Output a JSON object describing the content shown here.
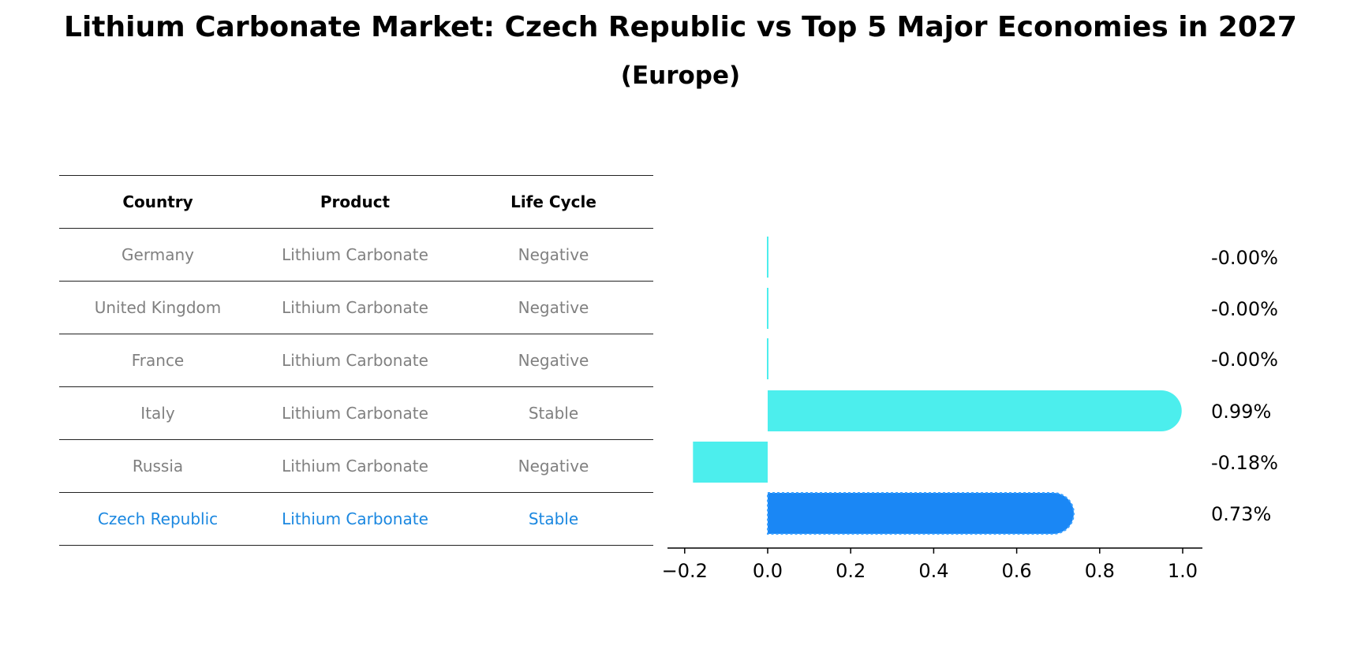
{
  "title": "Lithium Carbonate Market: Czech Republic vs Top 5 Major Economies in 2027",
  "subtitle": "(Europe)",
  "table": {
    "headers": [
      "Country",
      "Product",
      "Life Cycle"
    ],
    "rows": [
      {
        "country": "Germany",
        "product": "Lithium Carbonate",
        "life_cycle": "Negative"
      },
      {
        "country": "United Kingdom",
        "product": "Lithium Carbonate",
        "life_cycle": "Negative"
      },
      {
        "country": "France",
        "product": "Lithium Carbonate",
        "life_cycle": "Negative"
      },
      {
        "country": "Italy",
        "product": "Lithium Carbonate",
        "life_cycle": "Stable"
      },
      {
        "country": "Russia",
        "product": "Lithium Carbonate",
        "life_cycle": "Negative"
      },
      {
        "country": "Czech Republic",
        "product": "Lithium Carbonate",
        "life_cycle": "Stable"
      }
    ]
  },
  "colors": {
    "bar": "#4ceeed",
    "highlight_bar": "#1a87f5",
    "highlight_text": "#1a87e0",
    "muted_text": "#808080"
  },
  "chart_data": {
    "type": "bar",
    "orientation": "horizontal",
    "categories": [
      "Germany",
      "United Kingdom",
      "France",
      "Italy",
      "Russia",
      "Czech Republic"
    ],
    "values": [
      -0.0,
      -0.0,
      -0.0,
      0.99,
      -0.18,
      0.73
    ],
    "value_labels": [
      "-0.00%",
      "-0.00%",
      "-0.00%",
      "0.99%",
      "-0.18%",
      "0.73%"
    ],
    "highlight": "Czech Republic",
    "xlim": [
      -0.24,
      1.05
    ],
    "xticks": [
      -0.2,
      0.0,
      0.2,
      0.4,
      0.6,
      0.8,
      1.0
    ],
    "xtick_labels": [
      "−0.2",
      "0.0",
      "0.2",
      "0.4",
      "0.6",
      "0.8",
      "1.0"
    ]
  }
}
